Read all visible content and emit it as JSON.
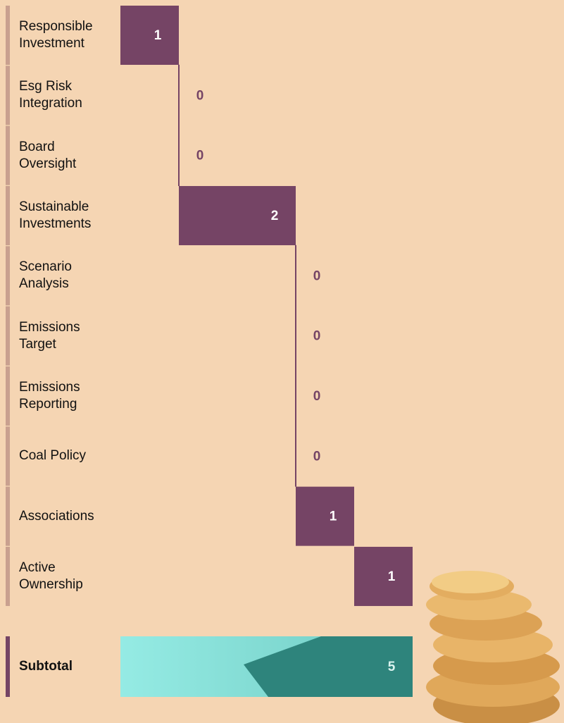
{
  "chart_data": {
    "type": "waterfall",
    "categories": [
      "Responsible Investment",
      "Esg Risk Integration",
      "Board Oversight",
      "Sustainable Investments",
      "Scenario Analysis",
      "Emissions Target",
      "Emissions Reporting",
      "Coal Policy",
      "Associations",
      "Active Ownership"
    ],
    "values": [
      1,
      0,
      0,
      2,
      0,
      0,
      0,
      0,
      1,
      1
    ],
    "color": "#754465",
    "subtotal": {
      "label": "Subtotal",
      "value": 5,
      "color": "#2e847c"
    }
  }
}
